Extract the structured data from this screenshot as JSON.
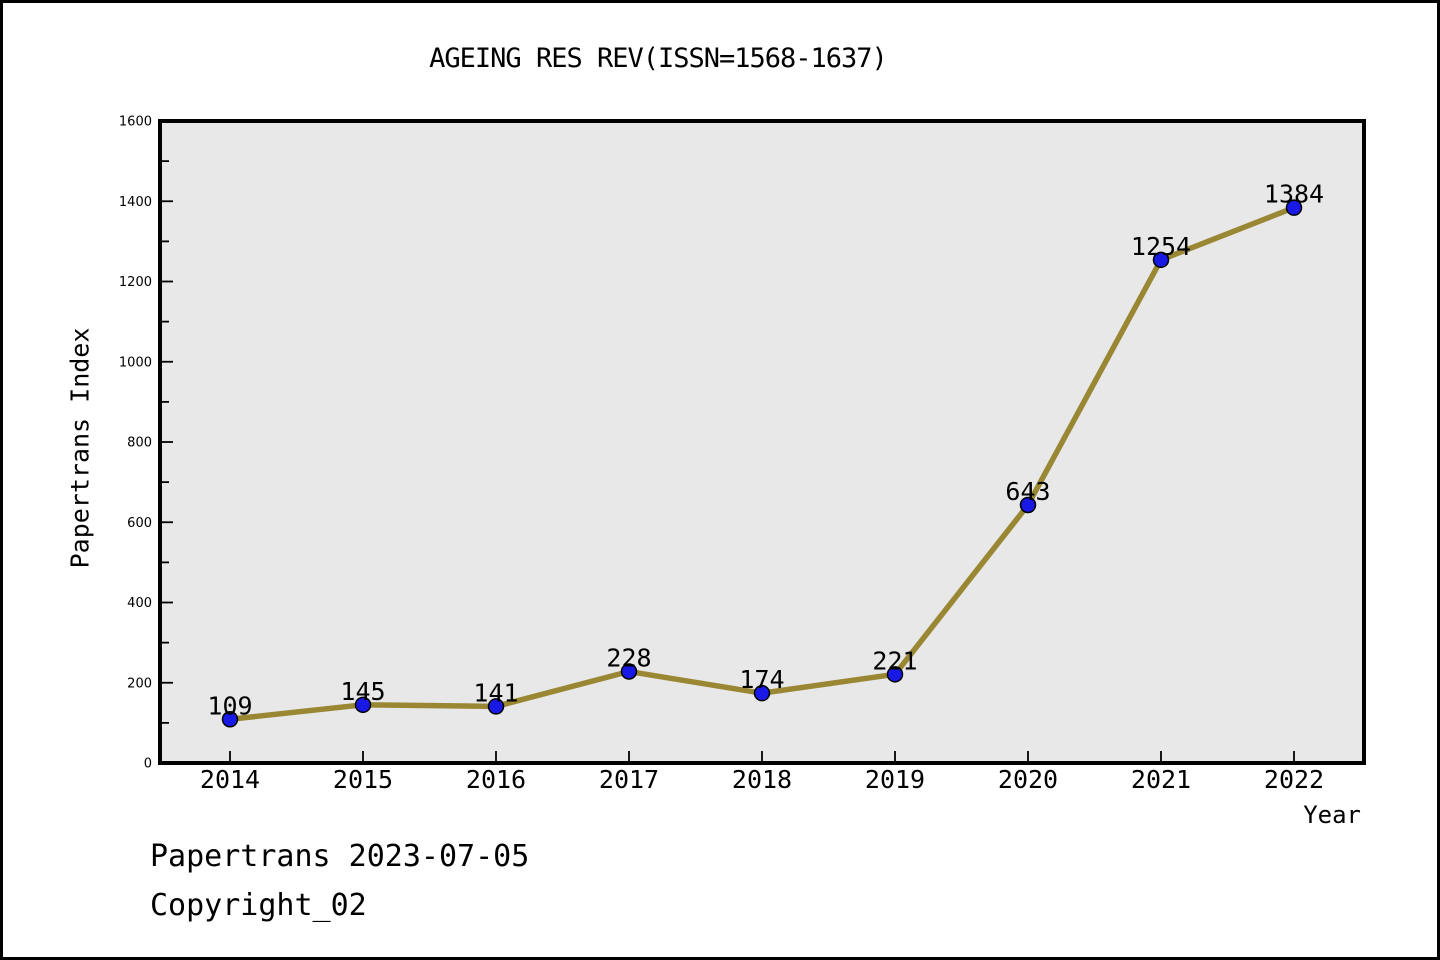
{
  "chart_data": {
    "type": "line",
    "title": "AGEING RES REV(ISSN=1568-1637)",
    "xlabel": "Year",
    "ylabel": "Papertrans Index",
    "categories": [
      "2014",
      "2015",
      "2016",
      "2017",
      "2018",
      "2019",
      "2020",
      "2021",
      "2022"
    ],
    "series": [
      {
        "name": "Papertrans Index",
        "values": [
          109,
          145,
          141,
          228,
          174,
          221,
          643,
          1254,
          1384
        ]
      }
    ],
    "ylim": [
      0,
      1600
    ],
    "y_major_step": 200,
    "y_minor_step": 100,
    "y_tick_labels": [
      "0",
      "200",
      "400",
      "600",
      "800",
      "1000",
      "1200",
      "1400",
      "1600"
    ],
    "grid": false,
    "legend": "none",
    "data_labels": true,
    "colors": {
      "line": "#9a8734",
      "marker": "#1919e6",
      "marker_edge": "#000000",
      "plot_bg": "#e8e8e8",
      "frame": "#000000",
      "text": "#000000"
    }
  },
  "footer": {
    "line1": "Papertrans 2023-07-05",
    "line2": "Copyright_02"
  }
}
